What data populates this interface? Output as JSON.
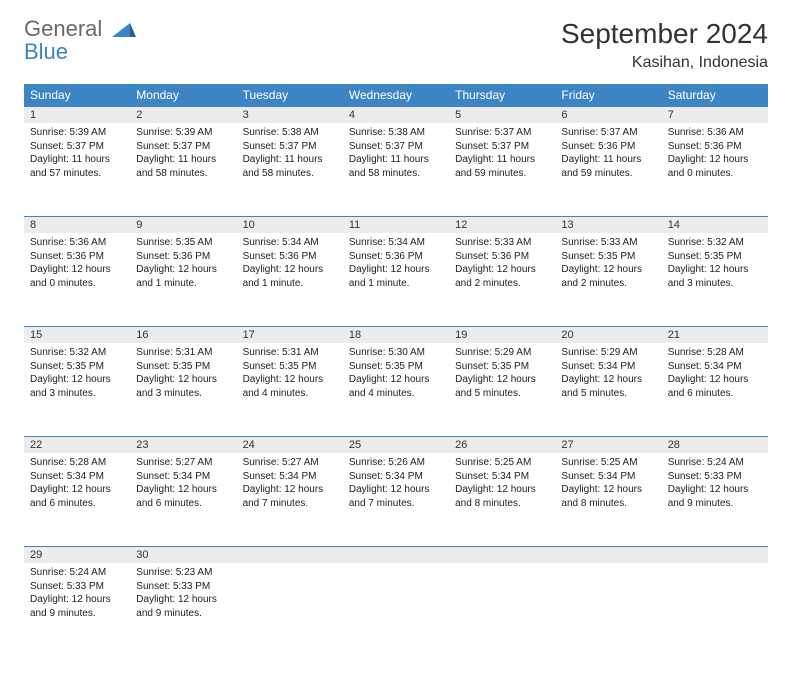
{
  "brand": {
    "general": "General",
    "blue": "Blue"
  },
  "title": "September 2024",
  "location": "Kasihan, Indonesia",
  "colors": {
    "header_bg": "#3d84c4",
    "header_fg": "#ffffff",
    "daynum_bg": "#ececec",
    "border": "#3d84c4",
    "logo_gray": "#6a6a6a",
    "logo_blue": "#3d84c4"
  },
  "weekdays": [
    "Sunday",
    "Monday",
    "Tuesday",
    "Wednesday",
    "Thursday",
    "Friday",
    "Saturday"
  ],
  "weeks": [
    [
      {
        "n": "1",
        "sr": "Sunrise: 5:39 AM",
        "ss": "Sunset: 5:37 PM",
        "dl": "Daylight: 11 hours and 57 minutes."
      },
      {
        "n": "2",
        "sr": "Sunrise: 5:39 AM",
        "ss": "Sunset: 5:37 PM",
        "dl": "Daylight: 11 hours and 58 minutes."
      },
      {
        "n": "3",
        "sr": "Sunrise: 5:38 AM",
        "ss": "Sunset: 5:37 PM",
        "dl": "Daylight: 11 hours and 58 minutes."
      },
      {
        "n": "4",
        "sr": "Sunrise: 5:38 AM",
        "ss": "Sunset: 5:37 PM",
        "dl": "Daylight: 11 hours and 58 minutes."
      },
      {
        "n": "5",
        "sr": "Sunrise: 5:37 AM",
        "ss": "Sunset: 5:37 PM",
        "dl": "Daylight: 11 hours and 59 minutes."
      },
      {
        "n": "6",
        "sr": "Sunrise: 5:37 AM",
        "ss": "Sunset: 5:36 PM",
        "dl": "Daylight: 11 hours and 59 minutes."
      },
      {
        "n": "7",
        "sr": "Sunrise: 5:36 AM",
        "ss": "Sunset: 5:36 PM",
        "dl": "Daylight: 12 hours and 0 minutes."
      }
    ],
    [
      {
        "n": "8",
        "sr": "Sunrise: 5:36 AM",
        "ss": "Sunset: 5:36 PM",
        "dl": "Daylight: 12 hours and 0 minutes."
      },
      {
        "n": "9",
        "sr": "Sunrise: 5:35 AM",
        "ss": "Sunset: 5:36 PM",
        "dl": "Daylight: 12 hours and 1 minute."
      },
      {
        "n": "10",
        "sr": "Sunrise: 5:34 AM",
        "ss": "Sunset: 5:36 PM",
        "dl": "Daylight: 12 hours and 1 minute."
      },
      {
        "n": "11",
        "sr": "Sunrise: 5:34 AM",
        "ss": "Sunset: 5:36 PM",
        "dl": "Daylight: 12 hours and 1 minute."
      },
      {
        "n": "12",
        "sr": "Sunrise: 5:33 AM",
        "ss": "Sunset: 5:36 PM",
        "dl": "Daylight: 12 hours and 2 minutes."
      },
      {
        "n": "13",
        "sr": "Sunrise: 5:33 AM",
        "ss": "Sunset: 5:35 PM",
        "dl": "Daylight: 12 hours and 2 minutes."
      },
      {
        "n": "14",
        "sr": "Sunrise: 5:32 AM",
        "ss": "Sunset: 5:35 PM",
        "dl": "Daylight: 12 hours and 3 minutes."
      }
    ],
    [
      {
        "n": "15",
        "sr": "Sunrise: 5:32 AM",
        "ss": "Sunset: 5:35 PM",
        "dl": "Daylight: 12 hours and 3 minutes."
      },
      {
        "n": "16",
        "sr": "Sunrise: 5:31 AM",
        "ss": "Sunset: 5:35 PM",
        "dl": "Daylight: 12 hours and 3 minutes."
      },
      {
        "n": "17",
        "sr": "Sunrise: 5:31 AM",
        "ss": "Sunset: 5:35 PM",
        "dl": "Daylight: 12 hours and 4 minutes."
      },
      {
        "n": "18",
        "sr": "Sunrise: 5:30 AM",
        "ss": "Sunset: 5:35 PM",
        "dl": "Daylight: 12 hours and 4 minutes."
      },
      {
        "n": "19",
        "sr": "Sunrise: 5:29 AM",
        "ss": "Sunset: 5:35 PM",
        "dl": "Daylight: 12 hours and 5 minutes."
      },
      {
        "n": "20",
        "sr": "Sunrise: 5:29 AM",
        "ss": "Sunset: 5:34 PM",
        "dl": "Daylight: 12 hours and 5 minutes."
      },
      {
        "n": "21",
        "sr": "Sunrise: 5:28 AM",
        "ss": "Sunset: 5:34 PM",
        "dl": "Daylight: 12 hours and 6 minutes."
      }
    ],
    [
      {
        "n": "22",
        "sr": "Sunrise: 5:28 AM",
        "ss": "Sunset: 5:34 PM",
        "dl": "Daylight: 12 hours and 6 minutes."
      },
      {
        "n": "23",
        "sr": "Sunrise: 5:27 AM",
        "ss": "Sunset: 5:34 PM",
        "dl": "Daylight: 12 hours and 6 minutes."
      },
      {
        "n": "24",
        "sr": "Sunrise: 5:27 AM",
        "ss": "Sunset: 5:34 PM",
        "dl": "Daylight: 12 hours and 7 minutes."
      },
      {
        "n": "25",
        "sr": "Sunrise: 5:26 AM",
        "ss": "Sunset: 5:34 PM",
        "dl": "Daylight: 12 hours and 7 minutes."
      },
      {
        "n": "26",
        "sr": "Sunrise: 5:25 AM",
        "ss": "Sunset: 5:34 PM",
        "dl": "Daylight: 12 hours and 8 minutes."
      },
      {
        "n": "27",
        "sr": "Sunrise: 5:25 AM",
        "ss": "Sunset: 5:34 PM",
        "dl": "Daylight: 12 hours and 8 minutes."
      },
      {
        "n": "28",
        "sr": "Sunrise: 5:24 AM",
        "ss": "Sunset: 5:33 PM",
        "dl": "Daylight: 12 hours and 9 minutes."
      }
    ],
    [
      {
        "n": "29",
        "sr": "Sunrise: 5:24 AM",
        "ss": "Sunset: 5:33 PM",
        "dl": "Daylight: 12 hours and 9 minutes."
      },
      {
        "n": "30",
        "sr": "Sunrise: 5:23 AM",
        "ss": "Sunset: 5:33 PM",
        "dl": "Daylight: 12 hours and 9 minutes."
      },
      null,
      null,
      null,
      null,
      null
    ]
  ]
}
